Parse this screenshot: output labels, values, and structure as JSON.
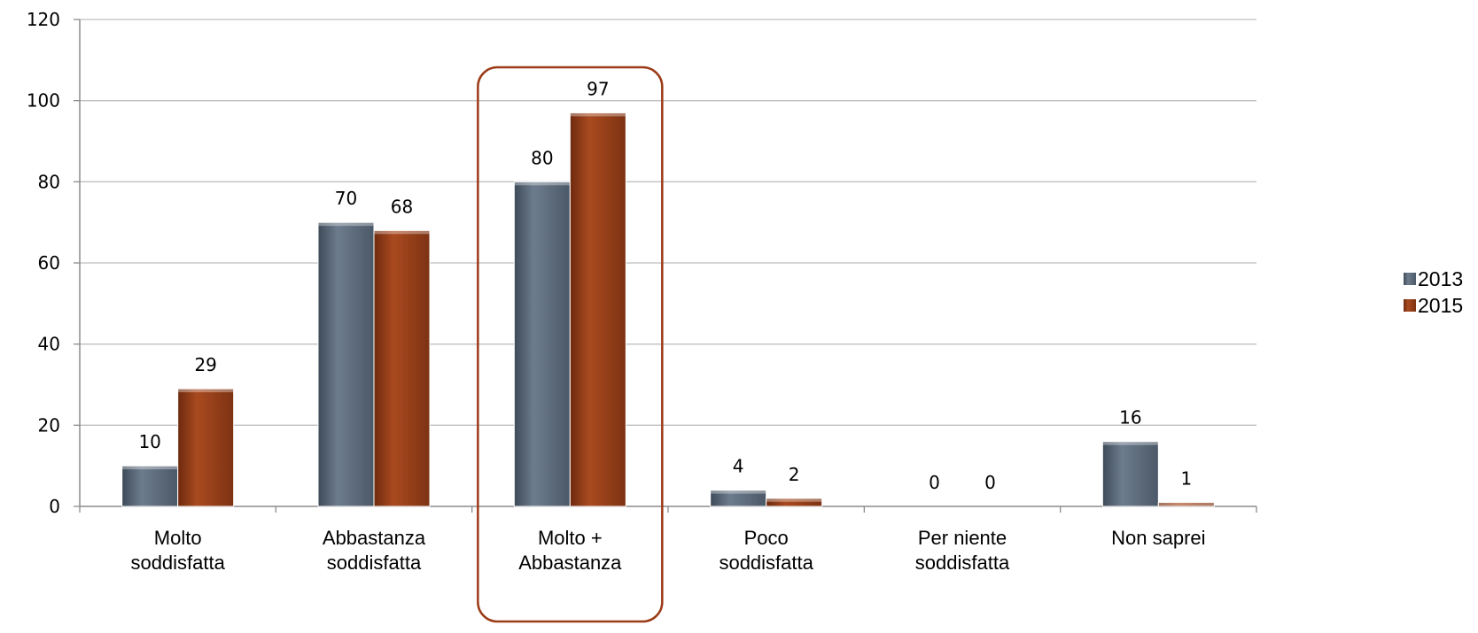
{
  "chart_data": {
    "type": "bar",
    "title": "",
    "xlabel": "",
    "ylabel": "",
    "ylim": [
      0,
      120
    ],
    "yticks": [
      0,
      20,
      40,
      60,
      80,
      100,
      120
    ],
    "grid": true,
    "legend_position": "right",
    "categories": [
      [
        "Molto",
        "soddisfatta"
      ],
      [
        "Abbastanza",
        "soddisfatta"
      ],
      [
        "Molto +",
        "Abbastanza"
      ],
      [
        "Poco",
        "soddisfatta"
      ],
      [
        "Per niente",
        "soddisfatta"
      ],
      [
        "Non saprei"
      ]
    ],
    "series": [
      {
        "name": "2013",
        "color": "#59687a",
        "values": [
          10,
          70,
          80,
          4,
          0,
          16
        ]
      },
      {
        "name": "2015",
        "color": "#943c19",
        "values": [
          29,
          68,
          97,
          2,
          0,
          1
        ]
      }
    ],
    "highlight": {
      "category_index": 2,
      "color": "#9b3b17"
    }
  }
}
